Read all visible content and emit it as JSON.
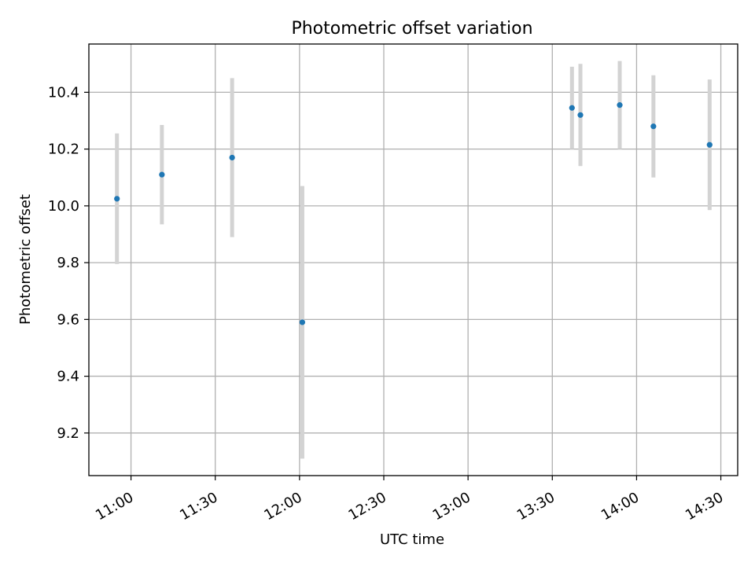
{
  "chart_data": {
    "type": "scatter",
    "title": "Photometric offset variation",
    "xlabel": "UTC time",
    "ylabel": "Photometric offset",
    "x_ticks": [
      "11:00",
      "11:30",
      "12:00",
      "12:30",
      "13:00",
      "13:30",
      "14:00",
      "14:30"
    ],
    "y_ticks": [
      "9.2",
      "9.4",
      "9.6",
      "9.8",
      "10.0",
      "10.2",
      "10.4"
    ],
    "x_range": [
      "10:45",
      "14:36"
    ],
    "y_range": [
      9.05,
      10.57
    ],
    "grid": true,
    "points": [
      {
        "x": "10:55",
        "y": 10.025,
        "err": 0.23
      },
      {
        "x": "11:11",
        "y": 10.11,
        "err": 0.175
      },
      {
        "x": "11:36",
        "y": 10.17,
        "err": 0.28
      },
      {
        "x": "12:01",
        "y": 9.59,
        "err": 0.48
      },
      {
        "x": "13:37",
        "y": 10.345,
        "err": 0.145
      },
      {
        "x": "13:40",
        "y": 10.32,
        "err": 0.18
      },
      {
        "x": "13:54",
        "y": 10.355,
        "err": 0.155
      },
      {
        "x": "14:06",
        "y": 10.28,
        "err": 0.18
      },
      {
        "x": "14:26",
        "y": 10.215,
        "err": 0.23
      }
    ],
    "point_color": "#1f77b4",
    "errorbar_color": "#d3d3d3",
    "grid_color": "#b0b0b0"
  }
}
